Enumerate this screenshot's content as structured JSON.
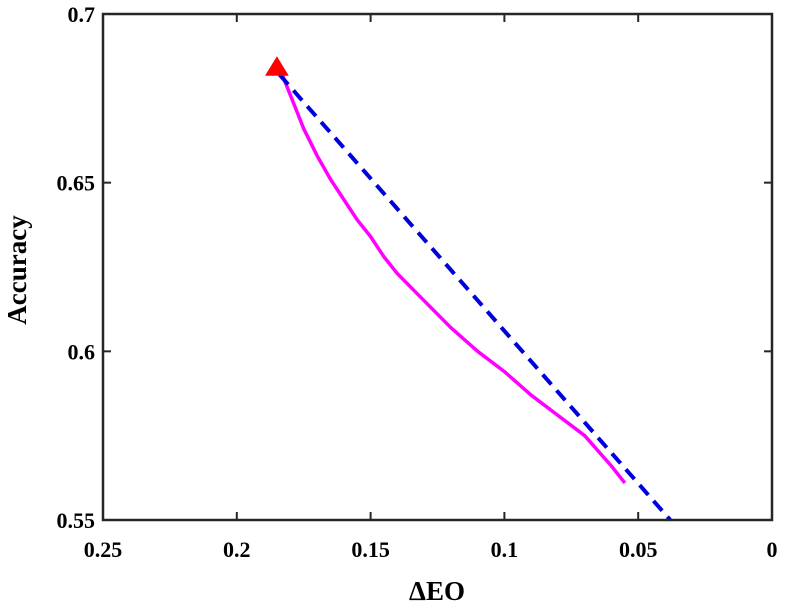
{
  "chart_data": {
    "type": "line",
    "title": "",
    "xlabel": "ΔEO",
    "ylabel": "Accuracy",
    "xlim": [
      0,
      0.25
    ],
    "x_reversed": true,
    "ylim": [
      0.55,
      0.7
    ],
    "xticks": [
      0.25,
      0.2,
      0.15,
      0.1,
      0.05,
      0
    ],
    "xtick_labels": [
      "0.25",
      "0.2",
      "0.15",
      "0.1",
      "0.05",
      "0"
    ],
    "yticks": [
      0.55,
      0.6,
      0.65,
      0.7
    ],
    "ytick_labels": [
      "0.55",
      "0.6",
      "0.65",
      "0.7"
    ],
    "grid": false,
    "legend": "none",
    "series": [
      {
        "style": "solid",
        "color": "#ff00ff",
        "points": [
          [
            0.183,
            0.682
          ],
          [
            0.181,
            0.678
          ],
          [
            0.178,
            0.672
          ],
          [
            0.175,
            0.666
          ],
          [
            0.17,
            0.658
          ],
          [
            0.165,
            0.651
          ],
          [
            0.16,
            0.645
          ],
          [
            0.155,
            0.639
          ],
          [
            0.15,
            0.634
          ],
          [
            0.145,
            0.628
          ],
          [
            0.14,
            0.623
          ],
          [
            0.13,
            0.615
          ],
          [
            0.12,
            0.607
          ],
          [
            0.11,
            0.6
          ],
          [
            0.1,
            0.594
          ],
          [
            0.09,
            0.587
          ],
          [
            0.08,
            0.581
          ],
          [
            0.07,
            0.575
          ],
          [
            0.06,
            0.566
          ],
          [
            0.055,
            0.561
          ]
        ]
      },
      {
        "style": "dashed",
        "color": "#0000dd",
        "points": [
          [
            0.184,
            0.682
          ],
          [
            0.038,
            0.55
          ]
        ]
      }
    ],
    "markers": [
      {
        "shape": "triangle",
        "color": "#ff0000",
        "x": 0.185,
        "y": 0.684
      }
    ]
  }
}
